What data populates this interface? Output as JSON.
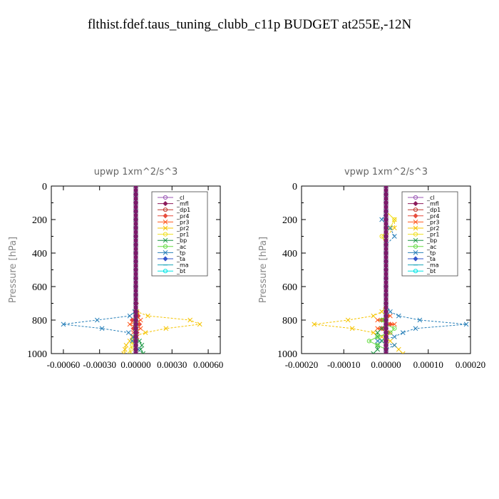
{
  "figure_title": "flthist.fdef.taus_tuning_clubb_c11p  BUDGET at255E,-12N",
  "chart_data": [
    {
      "type": "line",
      "title": "upwp   1xm^2/s^3",
      "ylabel": "Pressure [hPa]",
      "xlim": [
        -0.0007,
        0.0007
      ],
      "ylim": [
        1000,
        0
      ],
      "yticks": [
        0,
        200,
        400,
        600,
        800,
        1000
      ],
      "yticklabels": [
        "0",
        "200",
        "400",
        "600",
        "800",
        "1000"
      ],
      "xticks": [
        -0.0006,
        -0.0003,
        0,
        0.0003,
        0.0006
      ],
      "xticklabels": [
        "-0.00060",
        "-0.00030",
        "0.00000",
        "0.00030",
        "0.00060"
      ],
      "legend_position": "top-right",
      "y": [
        0,
        50,
        100,
        150,
        200,
        250,
        300,
        350,
        400,
        450,
        500,
        550,
        600,
        650,
        700,
        750,
        775,
        800,
        825,
        850,
        875,
        900,
        925,
        950,
        975,
        1000
      ],
      "series": [
        {
          "name": "_cl",
          "color": "#9b59b6",
          "marker": "circle",
          "values": [
            0,
            0,
            0,
            0,
            0,
            0,
            0,
            0,
            0,
            0,
            0,
            0,
            0,
            0,
            0,
            0,
            0,
            0,
            0,
            0,
            0,
            0,
            0,
            0,
            0,
            0
          ]
        },
        {
          "name": "_mfl",
          "color": "#8b1a5a",
          "marker": "diamond",
          "values": [
            0,
            0,
            0,
            0,
            0,
            0,
            0,
            0,
            0,
            0,
            0,
            0,
            0,
            0,
            0,
            0,
            0,
            0,
            0,
            0,
            0,
            0,
            0,
            0,
            0,
            0
          ]
        },
        {
          "name": "_dp1",
          "color": "#c0392b",
          "marker": "circle",
          "values": [
            0,
            0,
            0,
            0,
            0,
            0,
            0,
            0,
            0,
            0,
            0,
            0,
            0,
            0,
            0,
            0,
            0,
            0,
            0,
            0,
            0,
            0,
            0,
            0,
            0,
            0
          ]
        },
        {
          "name": "_pr4",
          "color": "#e74c3c",
          "marker": "diamond",
          "values": [
            0,
            0,
            0,
            0,
            0,
            0,
            0,
            0,
            0,
            0,
            0,
            0,
            0,
            0,
            5e-06,
            1e-05,
            2e-05,
            -3e-05,
            3e-05,
            -2e-05,
            1e-05,
            0,
            0,
            0,
            0,
            0
          ]
        },
        {
          "name": "_pr3",
          "color": "#ff5a1f",
          "marker": "x",
          "values": [
            0,
            0,
            0,
            0,
            0,
            0,
            0,
            0,
            0,
            0,
            0,
            0,
            0,
            0,
            0,
            0,
            1e-05,
            4e-05,
            -5e-05,
            4e-05,
            -2e-05,
            1e-05,
            0,
            0,
            0,
            0
          ]
        },
        {
          "name": "_pr2",
          "color": "#f5c400",
          "marker": "x",
          "values": [
            0,
            0,
            0,
            0,
            0,
            0,
            0,
            0,
            0,
            0,
            0,
            0,
            0,
            0,
            0,
            1e-05,
            0.0001,
            0.00045,
            0.00053,
            0.00025,
            8e-05,
            -3e-05,
            -5e-05,
            -8e-05,
            -9e-05,
            -0.0001
          ]
        },
        {
          "name": "_pr1",
          "color": "#f0e020",
          "marker": "circle",
          "values": [
            0,
            0,
            0,
            0,
            0,
            0,
            0,
            0,
            0,
            0,
            0,
            0,
            0,
            0,
            0,
            0,
            0,
            0,
            0,
            0,
            0,
            0,
            -2e-05,
            -3e-05,
            -4e-05,
            -5e-05
          ]
        },
        {
          "name": "_bp",
          "color": "#1a9641",
          "marker": "x",
          "values": [
            0,
            0,
            0,
            0,
            0,
            0,
            0,
            0,
            0,
            0,
            0,
            0,
            0,
            0,
            0,
            0,
            0,
            0,
            0,
            0,
            0,
            0,
            3e-05,
            5e-05,
            4e-05,
            6e-05
          ]
        },
        {
          "name": "_ac",
          "color": "#66dd44",
          "marker": "circle",
          "values": [
            0,
            0,
            0,
            0,
            0,
            0,
            0,
            0,
            0,
            0,
            0,
            0,
            0,
            0,
            0,
            0,
            0,
            0,
            0,
            0,
            0,
            0,
            0,
            0,
            0,
            0
          ]
        },
        {
          "name": "_tp",
          "color": "#2980b9",
          "marker": "x",
          "values": [
            0,
            0,
            0,
            0,
            0,
            0,
            0,
            0,
            0,
            0,
            0,
            0,
            0,
            0,
            0,
            -1e-05,
            -5e-05,
            -0.00032,
            -0.0006,
            -0.00028,
            -6e-05,
            -2e-05,
            -3e-05,
            0,
            2e-05,
            0
          ]
        },
        {
          "name": "_ta",
          "color": "#3355cc",
          "marker": "diamond",
          "values": [
            0,
            0,
            0,
            0,
            0,
            0,
            0,
            0,
            0,
            0,
            0,
            0,
            0,
            0,
            0,
            0,
            0,
            0,
            0,
            0,
            0,
            0,
            0,
            0,
            0,
            0
          ]
        },
        {
          "name": "_ma",
          "color": "#17a2b8",
          "marker": "line",
          "values": [
            0,
            0,
            0,
            0,
            0,
            0,
            0,
            0,
            0,
            0,
            0,
            0,
            0,
            0,
            0,
            0,
            0,
            0,
            0,
            0,
            0,
            0,
            0,
            0,
            0,
            0
          ]
        },
        {
          "name": "_bt",
          "color": "#00e5e5",
          "marker": "circle",
          "values": [
            0,
            0,
            0,
            0,
            0,
            0,
            0,
            0,
            0,
            0,
            0,
            0,
            0,
            0,
            0,
            0,
            0,
            0,
            0,
            0,
            0,
            0,
            0,
            0,
            0,
            0
          ]
        }
      ],
      "vertical_profile": {
        "name": "",
        "color": "#7b1a6a",
        "x": 0
      }
    },
    {
      "type": "line",
      "title": "vpwp   1xm^2/s^3",
      "ylabel": "Pressure [hPa]",
      "xlim": [
        -0.0002,
        0.0002
      ],
      "ylim": [
        1000,
        0
      ],
      "yticks": [
        0,
        200,
        400,
        600,
        800,
        1000
      ],
      "yticklabels": [
        "0",
        "200",
        "400",
        "600",
        "800",
        "1000"
      ],
      "xticks": [
        -0.0002,
        -0.0001,
        0,
        0.0001,
        0.0002
      ],
      "xticklabels": [
        "-0.00020",
        "-0.00010",
        "0.00000",
        "0.00010",
        "0.00020"
      ],
      "legend_position": "top-right",
      "y": [
        0,
        50,
        100,
        150,
        200,
        250,
        300,
        350,
        400,
        450,
        500,
        550,
        600,
        650,
        700,
        750,
        775,
        800,
        825,
        850,
        875,
        900,
        925,
        950,
        975,
        1000
      ],
      "series": [
        {
          "name": "_cl",
          "color": "#9b59b6",
          "marker": "circle",
          "values": [
            0,
            0,
            0,
            0,
            0,
            0,
            0,
            0,
            0,
            0,
            0,
            0,
            0,
            0,
            0,
            0,
            0,
            0,
            0,
            0,
            0,
            0,
            0,
            0,
            0,
            0
          ]
        },
        {
          "name": "_mfl",
          "color": "#8b1a5a",
          "marker": "diamond",
          "values": [
            0,
            0,
            0,
            0,
            0,
            0,
            0,
            0,
            0,
            0,
            0,
            0,
            0,
            0,
            0,
            0,
            0,
            0,
            0,
            0,
            0,
            0,
            0,
            0,
            0,
            0
          ]
        },
        {
          "name": "_dp1",
          "color": "#c0392b",
          "marker": "circle",
          "values": [
            0,
            0,
            0,
            0,
            0,
            0,
            0,
            0,
            0,
            0,
            0,
            0,
            0,
            0,
            0,
            0,
            0,
            0,
            0,
            0,
            0,
            0,
            0,
            0,
            0,
            0
          ]
        },
        {
          "name": "_pr4",
          "color": "#e74c3c",
          "marker": "diamond",
          "values": [
            0,
            0,
            0,
            0,
            0,
            0,
            0,
            0,
            0,
            0,
            0,
            0,
            0,
            0,
            0,
            0,
            5e-06,
            -1e-05,
            1e-05,
            -1e-05,
            5e-06,
            0,
            0,
            0,
            0,
            0
          ]
        },
        {
          "name": "_pr3",
          "color": "#ff5a1f",
          "marker": "x",
          "values": [
            0,
            0,
            0,
            0,
            0,
            0,
            0,
            0,
            0,
            0,
            0,
            0,
            0,
            0,
            0,
            0,
            1e-05,
            -2e-05,
            2e-05,
            -2e-05,
            1e-05,
            0,
            0,
            0,
            0,
            0
          ]
        },
        {
          "name": "_pr2",
          "color": "#f5c400",
          "marker": "x",
          "values": [
            0,
            0,
            0,
            0,
            2e-05,
            2e-05,
            0,
            0,
            0,
            0,
            0,
            0,
            0,
            0,
            0,
            -1e-05,
            -3e-05,
            -9e-05,
            -0.00017,
            -8e-05,
            -3e-05,
            -1e-05,
            1e-05,
            2e-05,
            3e-05,
            4e-05
          ]
        },
        {
          "name": "_pr1",
          "color": "#f0e020",
          "marker": "circle",
          "values": [
            0,
            0,
            0,
            0,
            2e-05,
            1e-05,
            -1e-05,
            0,
            0,
            0,
            0,
            0,
            0,
            0,
            0,
            0,
            0,
            0,
            0,
            0,
            0,
            0,
            0,
            0,
            0,
            0
          ]
        },
        {
          "name": "_bp",
          "color": "#1a9641",
          "marker": "x",
          "values": [
            0,
            0,
            0,
            0,
            0,
            0,
            0,
            0,
            0,
            0,
            0,
            0,
            0,
            0,
            0,
            0,
            0,
            0,
            0,
            -1e-05,
            -2e-05,
            -2e-05,
            -1e-05,
            -2e-05,
            -2e-05,
            -3e-05
          ]
        },
        {
          "name": "_ac",
          "color": "#66dd44",
          "marker": "circle",
          "values": [
            0,
            0,
            0,
            0,
            0,
            0,
            0,
            0,
            0,
            0,
            0,
            0,
            0,
            0,
            0,
            0,
            0,
            -1e-05,
            0,
            2e-05,
            1e-05,
            -2e-05,
            -4e-05,
            -2e-05,
            0,
            0
          ]
        },
        {
          "name": "_tp",
          "color": "#2980b9",
          "marker": "x",
          "values": [
            0,
            0,
            0,
            0,
            -1e-05,
            1e-05,
            2e-05,
            0,
            0,
            0,
            0,
            0,
            0,
            0,
            0,
            1e-05,
            3e-05,
            8e-05,
            0.00019,
            7e-05,
            4e-05,
            2e-05,
            -2e-05,
            2e-05,
            0,
            0
          ]
        },
        {
          "name": "_ta",
          "color": "#3355cc",
          "marker": "diamond",
          "values": [
            0,
            0,
            0,
            0,
            0,
            0,
            0,
            0,
            0,
            0,
            0,
            0,
            0,
            0,
            0,
            0,
            0,
            0,
            0,
            0,
            0,
            0,
            0,
            0,
            0,
            0
          ]
        },
        {
          "name": "_ma",
          "color": "#17a2b8",
          "marker": "line",
          "values": [
            0,
            0,
            0,
            0,
            0,
            0,
            0,
            0,
            0,
            0,
            0,
            0,
            0,
            0,
            0,
            0,
            0,
            0,
            0,
            0,
            0,
            0,
            0,
            0,
            0,
            0
          ]
        },
        {
          "name": "_bt",
          "color": "#00e5e5",
          "marker": "circle",
          "values": [
            0,
            0,
            0,
            0,
            0,
            0,
            0,
            0,
            0,
            0,
            0,
            0,
            0,
            0,
            0,
            0,
            0,
            0,
            0,
            0,
            0,
            0,
            0,
            0,
            0,
            0
          ]
        }
      ],
      "vertical_profile": {
        "name": "",
        "color": "#7b1a6a",
        "x": 0
      }
    }
  ]
}
